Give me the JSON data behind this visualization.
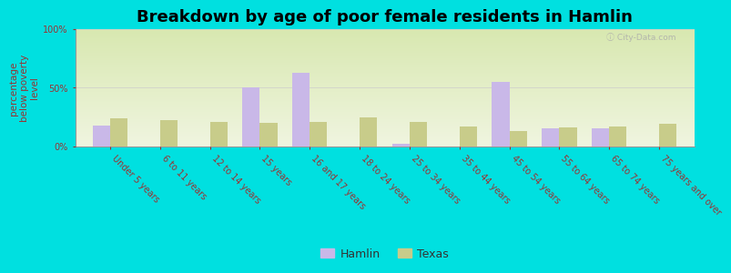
{
  "title": "Breakdown by age of poor female residents in Hamlin",
  "ylabel": "percentage\nbelow poverty\nlevel",
  "categories": [
    "Under 5 years",
    "6 to 11 years",
    "12 to 14 years",
    "15 years",
    "16 and 17 years",
    "18 to 24 years",
    "25 to 34 years",
    "35 to 44 years",
    "45 to 54 years",
    "55 to 64 years",
    "65 to 74 years",
    "75 years and over"
  ],
  "hamlin_values": [
    18,
    0,
    0,
    50,
    63,
    0,
    2,
    0,
    55,
    15,
    15,
    0
  ],
  "texas_values": [
    24,
    22,
    21,
    20,
    21,
    25,
    21,
    17,
    13,
    16,
    17,
    19
  ],
  "hamlin_color": "#c9b8e8",
  "texas_color": "#c8cc8a",
  "background_top": "#d8e8b0",
  "background_bottom": "#f0f5e0",
  "outer_bg": "#00e0e0",
  "ylim": [
    0,
    100
  ],
  "yticks": [
    0,
    50,
    100
  ],
  "ytick_labels": [
    "0%",
    "50%",
    "100%"
  ],
  "bar_width": 0.35,
  "title_fontsize": 13,
  "axis_label_fontsize": 7.5,
  "tick_label_fontsize": 7,
  "legend_hamlin": "Hamlin",
  "legend_texas": "Texas",
  "label_color": "#993333"
}
